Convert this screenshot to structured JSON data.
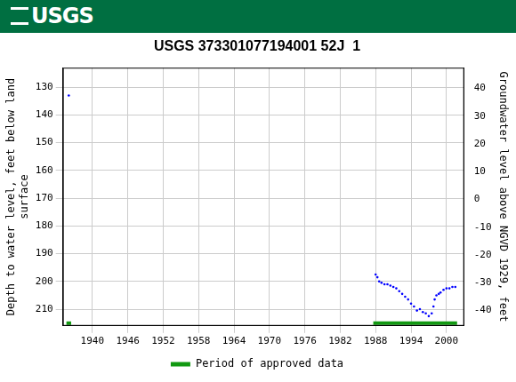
{
  "header": "USGS",
  "chart_data": {
    "type": "scatter",
    "title": "USGS 373301077194001 52J  1",
    "y_label": [
      "Depth to water level, feet below land",
      "surface"
    ],
    "y2_label": "Groundwater level above NGVD 1929, feet",
    "xlim": [
      1935,
      2003
    ],
    "xticks": [
      1940,
      1946,
      1952,
      1958,
      1964,
      1970,
      1976,
      1982,
      1988,
      1994,
      2000
    ],
    "ylim": [
      123,
      216
    ],
    "yticks": [
      130,
      140,
      150,
      160,
      170,
      180,
      190,
      200,
      210
    ],
    "y2lim": [
      -45.5,
      47.5
    ],
    "y2ticks": [
      -40,
      -30,
      -20,
      -10,
      0,
      10,
      20,
      30,
      40
    ],
    "grid": true,
    "legend": "bottom",
    "series": [
      {
        "color": "#0000ff",
        "marker": "point",
        "x": [
          1936.0,
          1988.0,
          1988.3,
          1988.6,
          1989.0,
          1989.5,
          1990.0,
          1990.5,
          1991.0,
          1991.5,
          1992.0,
          1992.5,
          1993.0,
          1993.5,
          1994.0,
          1994.5,
          1995.0,
          1995.5,
          1996.0,
          1996.5,
          1997.0,
          1997.5,
          1997.8,
          1998.0,
          1998.3,
          1998.7,
          1999.0,
          1999.5,
          2000.0,
          2000.5,
          2001.0,
          2001.5
        ],
        "values": [
          133.0,
          197.5,
          198.5,
          200.0,
          200.5,
          201.0,
          201.0,
          201.5,
          202.0,
          202.5,
          203.5,
          204.5,
          205.5,
          206.5,
          208.0,
          209.0,
          210.5,
          210.0,
          211.0,
          211.5,
          212.5,
          211.5,
          209.0,
          206.5,
          205.0,
          204.5,
          204.0,
          203.0,
          202.5,
          202.5,
          202.0,
          202.0
        ]
      }
    ],
    "approved": {
      "name": "Period of approved data",
      "color": "#119911",
      "periods": [
        [
          1935.6,
          1936.4
        ],
        [
          1987.6,
          2001.8
        ]
      ]
    }
  }
}
